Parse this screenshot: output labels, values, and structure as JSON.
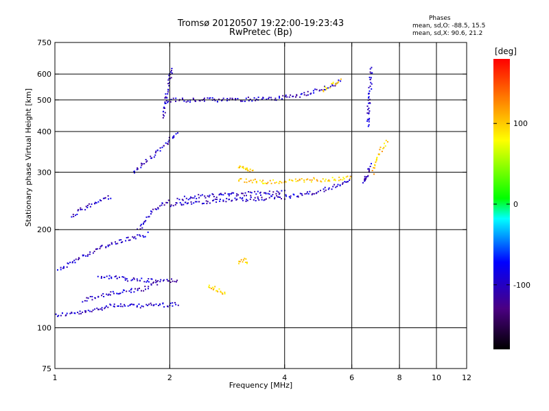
{
  "title": {
    "line1": "Tromsø 20120507 19:22:00-19:23:43",
    "line2": "RwPretec (Bp)"
  },
  "phases": {
    "heading": "Phases",
    "line_o": "mean, sd,O: -88.5, 15.5",
    "line_x": "mean, sd,X: 90.6, 21.2"
  },
  "chart_data": {
    "type": "scatter",
    "title": "Tromsø 20120507 19:22:00-19:23:43",
    "subtitle": "RwPretec (Bp)",
    "xlabel": "Frequency [MHz]",
    "ylabel": "Stationary phase Virtual Height [km]",
    "x_scale": "log",
    "y_scale": "log",
    "xlim": [
      1,
      12
    ],
    "ylim": [
      75,
      750
    ],
    "xticks": [
      1,
      2,
      4,
      6,
      8,
      10,
      12
    ],
    "yticks": [
      75,
      100,
      200,
      300,
      400,
      500,
      600,
      750
    ],
    "xgrid": [
      2,
      4,
      6,
      8,
      10
    ],
    "ygrid": [
      100,
      200,
      300,
      400,
      500,
      600
    ],
    "grid": true,
    "colorbar": {
      "label": "[deg]",
      "range": [
        -180,
        180
      ],
      "ticks": [
        -100,
        0,
        100
      ],
      "colors": [
        "#000000",
        "#4b0082",
        "#0000ff",
        "#00ffff",
        "#00ff00",
        "#ffff00",
        "#ff8000",
        "#ff0000"
      ]
    },
    "series": [
      {
        "phase": -100,
        "traces": [
          {
            "x": [
              1.0,
              1.2
            ],
            "y": [
              110,
              112
            ]
          },
          {
            "x": [
              1.2,
              1.4,
              1.6,
              1.8,
              2.0,
              2.1
            ],
            "y": [
              112,
              118,
              117,
              118,
              118,
              119
            ]
          },
          {
            "x": [
              1.18,
              1.35,
              1.55,
              1.7,
              1.85
            ],
            "y": [
              122,
              127,
              130,
              132,
              138
            ]
          },
          {
            "x": [
              1.02,
              1.1,
              1.2,
              1.3,
              1.45,
              1.6,
              1.75
            ],
            "y": [
              150,
              160,
              168,
              176,
              184,
              190,
              195
            ]
          },
          {
            "x": [
              1.3,
              1.5,
              1.75,
              2.0,
              2.1
            ],
            "y": [
              145,
              142,
              140,
              140,
              141
            ]
          },
          {
            "x": [
              1.1,
              1.2,
              1.3,
              1.4
            ],
            "y": [
              220,
              235,
              245,
              255
            ]
          },
          {
            "x": [
              1.6,
              1.7,
              1.8,
              1.9,
              2.0,
              2.1
            ],
            "y": [
              300,
              320,
              340,
              360,
              380,
              400
            ]
          },
          {
            "x": [
              1.65,
              1.72,
              1.8,
              1.9,
              2.0
            ],
            "y": [
              200,
              215,
              230,
              240,
              245
            ]
          },
          {
            "x": [
              2.0,
              2.2,
              2.5,
              3.0,
              3.5,
              4.0,
              4.5,
              5.0,
              5.5,
              6.0
            ],
            "y": [
              240,
              243,
              245,
              248,
              250,
              253,
              258,
              265,
              275,
              290
            ]
          },
          {
            "x": [
              2.1,
              2.5,
              3.0,
              3.5,
              4.0
            ],
            "y": [
              250,
              255,
              258,
              260,
              262
            ]
          },
          {
            "x": [
              1.95,
              2.3,
              2.8,
              3.3,
              3.8,
              4.2,
              4.7,
              5.2,
              5.6
            ],
            "y": [
              500,
              502,
              503,
              505,
              508,
              515,
              530,
              550,
              575
            ]
          },
          {
            "x": [
              1.92,
              1.95,
              1.98,
              2.0,
              2.02
            ],
            "y": [
              440,
              520,
              560,
              600,
              630
            ]
          },
          {
            "x": [
              6.6,
              6.62,
              6.65,
              6.7,
              6.72
            ],
            "y": [
              420,
              470,
              520,
              580,
              640
            ]
          },
          {
            "x": [
              6.4,
              6.5,
              6.6,
              6.7
            ],
            "y": [
              280,
              290,
              300,
              320
            ]
          }
        ]
      },
      {
        "phase": 100,
        "traces": [
          {
            "x": [
              3.0,
              3.3,
              3.6,
              4.0,
              4.5,
              5.0,
              5.5,
              6.0
            ],
            "y": [
              285,
              283,
              282,
              283,
              285,
              286,
              288,
              290
            ]
          },
          {
            "x": [
              3.0,
              3.1,
              3.2,
              3.3
            ],
            "y": [
              315,
              312,
              308,
              305
            ]
          },
          {
            "x": [
              2.5,
              2.6,
              2.7,
              2.8
            ],
            "y": [
              135,
              133,
              130,
              128
            ]
          },
          {
            "x": [
              3.0,
              3.1,
              3.2
            ],
            "y": [
              160,
              162,
              160
            ]
          },
          {
            "x": [
              6.8,
              6.9,
              7.0,
              7.2,
              7.4
            ],
            "y": [
              300,
              320,
              340,
              360,
              380
            ]
          },
          {
            "x": [
              5.0,
              5.3,
              5.6
            ],
            "y": [
              540,
              560,
              580
            ]
          }
        ]
      }
    ]
  }
}
